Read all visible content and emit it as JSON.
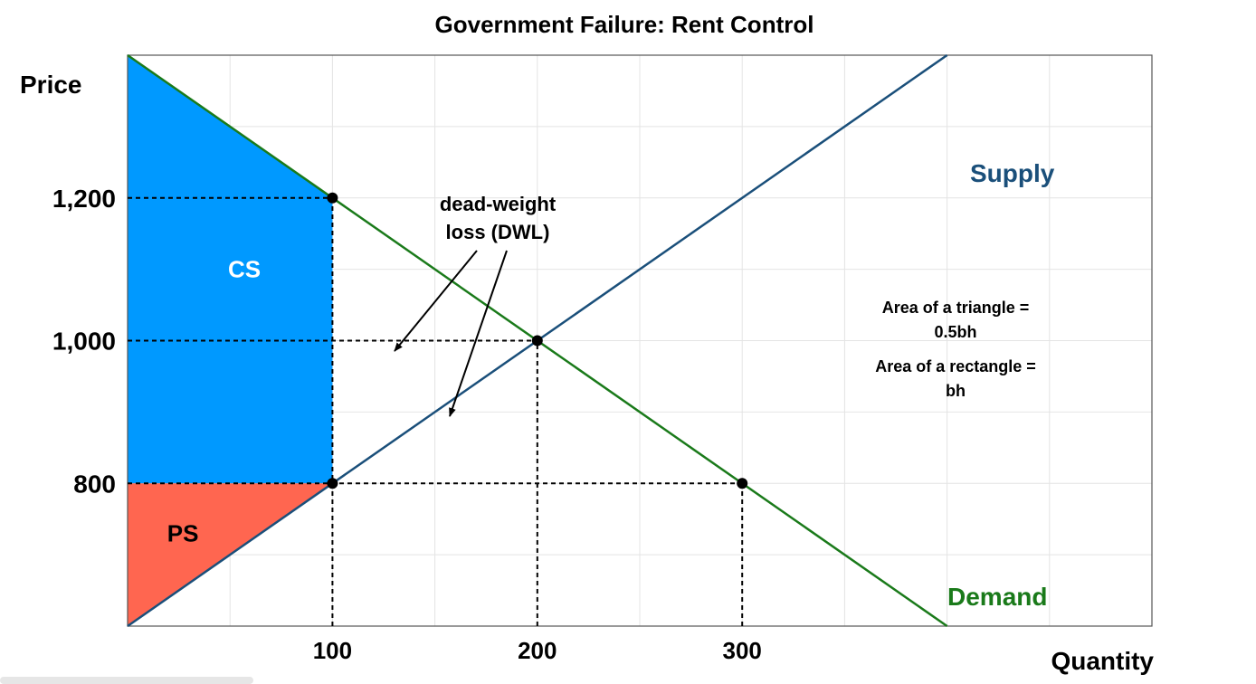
{
  "chart_data": {
    "type": "line",
    "title": "Government Failure: Rent Control",
    "xlabel": "Quantity",
    "ylabel": "Price",
    "xlim": [
      0,
      500
    ],
    "ylim": [
      600,
      1400
    ],
    "x_ticks": [
      100,
      200,
      300
    ],
    "y_ticks": [
      800,
      1000,
      1200
    ],
    "x_tick_labels": [
      "100",
      "200",
      "300"
    ],
    "y_tick_labels": [
      "800",
      "1,000",
      "1,200"
    ],
    "grid": true,
    "series": [
      {
        "name": "Supply",
        "color": "#1a4f7a",
        "points": [
          [
            0,
            600
          ],
          [
            400,
            1400
          ]
        ]
      },
      {
        "name": "Demand",
        "color": "#1a7a1a",
        "points": [
          [
            0,
            1400
          ],
          [
            400,
            600
          ]
        ]
      }
    ],
    "points": [
      {
        "x": 100,
        "y": 1200
      },
      {
        "x": 200,
        "y": 1000
      },
      {
        "x": 100,
        "y": 800
      },
      {
        "x": 300,
        "y": 800
      }
    ],
    "dashed_lines": [
      {
        "from": [
          0,
          1200
        ],
        "to": [
          100,
          1200
        ]
      },
      {
        "from": [
          0,
          1000
        ],
        "to": [
          200,
          1000
        ]
      },
      {
        "from": [
          0,
          800
        ],
        "to": [
          300,
          800
        ]
      },
      {
        "from": [
          100,
          600
        ],
        "to": [
          100,
          1200
        ]
      },
      {
        "from": [
          200,
          600
        ],
        "to": [
          200,
          1000
        ]
      },
      {
        "from": [
          300,
          600
        ],
        "to": [
          300,
          800
        ]
      }
    ],
    "regions": [
      {
        "label": "CS",
        "color": "#0099ff",
        "label_color": "#ffffff",
        "polygon": [
          [
            0,
            1400
          ],
          [
            100,
            1200
          ],
          [
            100,
            800
          ],
          [
            0,
            800
          ]
        ],
        "label_at": [
          57,
          1100
        ]
      },
      {
        "label": "PS",
        "color": "#ff6650",
        "label_color": "#000000",
        "polygon": [
          [
            0,
            600
          ],
          [
            100,
            800
          ],
          [
            0,
            800
          ]
        ],
        "label_at": [
          27,
          730
        ]
      }
    ],
    "annotations": {
      "dwl_line1": "dead-weight",
      "dwl_line2": "loss (DWL)",
      "formula_line1": "Area of a triangle =",
      "formula_line2": "0.5bh",
      "formula_line3": "Area of a rectangle =",
      "formula_line4": "bh"
    }
  }
}
